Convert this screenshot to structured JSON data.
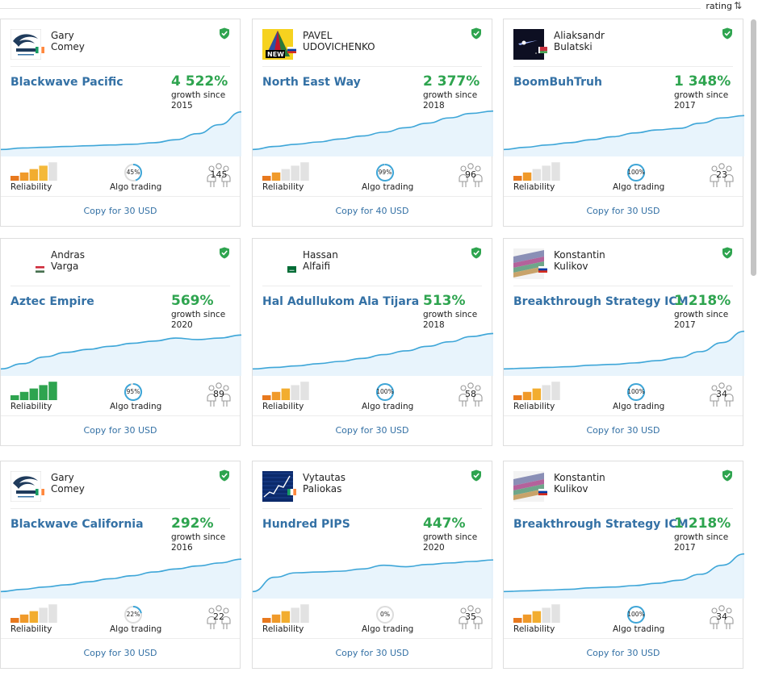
{
  "sort": {
    "label": "rating",
    "icon": "sort-arrows-icon"
  },
  "labels": {
    "reliability": "Reliability",
    "algo": "Algo trading"
  },
  "colors": {
    "accent": "#3471a5",
    "growth": "#2ea44f",
    "chart_line": "#3ea6d8"
  },
  "signals": [
    {
      "author_line1": "Gary",
      "author_line2": "Comey",
      "avatar": "blackwave-logo-icon",
      "flag": "ireland-flag-icon",
      "name": "Blackwave Pacific",
      "growth": "4 522%",
      "growth_label": "growth since",
      "since_year": "2015",
      "reliability_level": 4,
      "reliability_color": "orange",
      "algo": "45%",
      "algo_fraction": 0.45,
      "subscribers": "145",
      "copy_label": "Copy for 30 USD",
      "trend": [
        5,
        7,
        8,
        9,
        10,
        11,
        12,
        14,
        18,
        26,
        38,
        55
      ]
    },
    {
      "author_line1": "PAVEL",
      "author_line2": "UDOVICHENKO",
      "avatar": "new-triangle-logo-icon",
      "flag": "russia-flag-icon",
      "name": "North East Way",
      "growth": "2 377%",
      "growth_label": "growth since",
      "since_year": "2018",
      "reliability_level": 2,
      "reliability_color": "orange",
      "algo": "99%",
      "algo_fraction": 0.99,
      "subscribers": "96",
      "copy_label": "Copy for 40 USD",
      "trend": [
        5,
        9,
        12,
        15,
        19,
        23,
        28,
        34,
        40,
        47,
        53,
        56
      ]
    },
    {
      "author_line1": "Aliaksandr",
      "author_line2": "Bulatski",
      "avatar": "space-photo-icon",
      "flag": "belarus-flag-icon",
      "name": "BoomBuhTruh",
      "growth": "1 348%",
      "growth_label": "growth since",
      "since_year": "2017",
      "reliability_level": 2,
      "reliability_color": "orange",
      "algo": "100%",
      "algo_fraction": 1.0,
      "subscribers": "23",
      "copy_label": "Copy for 30 USD",
      "trend": [
        5,
        8,
        11,
        14,
        18,
        22,
        27,
        31,
        33,
        40,
        47,
        50
      ]
    },
    {
      "author_line1": "Andras",
      "author_line2": "Varga",
      "avatar": "",
      "flag": "hungary-flag-icon",
      "name": "Aztec Empire",
      "growth": "569%",
      "growth_label": "growth since",
      "since_year": "2020",
      "reliability_level": 5,
      "reliability_color": "green",
      "algo": "95%",
      "algo_fraction": 0.95,
      "subscribers": "89",
      "copy_label": "Copy for 30 USD",
      "trend": [
        5,
        12,
        21,
        27,
        31,
        35,
        39,
        42,
        46,
        44,
        46,
        50
      ]
    },
    {
      "author_line1": "Hassan",
      "author_line2": "Alfaifi",
      "avatar": "",
      "flag": "saudi-arabia-flag-icon",
      "name": "Hal Adullukom Ala Tijara",
      "growth": "513%",
      "growth_label": "growth since",
      "since_year": "2018",
      "reliability_level": 3,
      "reliability_color": "orange",
      "algo": "100%",
      "algo_fraction": 1.0,
      "subscribers": "58",
      "copy_label": "Copy for 30 USD",
      "trend": [
        5,
        7,
        9,
        12,
        15,
        19,
        24,
        29,
        35,
        41,
        48,
        52
      ]
    },
    {
      "author_line1": "Konstantin",
      "author_line2": "Kulikov",
      "avatar": "charts-photo-icon",
      "flag": "russia-flag-icon",
      "name": "Breakthrough Strategy ICM",
      "growth": "1 218%",
      "growth_label": "growth since",
      "since_year": "2017",
      "reliability_level": 3,
      "reliability_color": "orange",
      "algo": "100%",
      "algo_fraction": 1.0,
      "subscribers": "34",
      "copy_label": "Copy for 30 USD",
      "trend": [
        5,
        6,
        7,
        8,
        10,
        11,
        13,
        16,
        20,
        28,
        40,
        55
      ]
    },
    {
      "author_line1": "Gary",
      "author_line2": "Comey",
      "avatar": "blackwave-logo-icon",
      "flag": "ireland-flag-icon",
      "name": "Blackwave California",
      "growth": "292%",
      "growth_label": "growth since",
      "since_year": "2016",
      "reliability_level": 3,
      "reliability_color": "orange",
      "algo": "22%",
      "algo_fraction": 0.22,
      "subscribers": "22",
      "copy_label": "Copy for 30 USD",
      "trend": [
        5,
        8,
        11,
        14,
        18,
        22,
        26,
        31,
        35,
        39,
        43,
        48
      ]
    },
    {
      "author_line1": "Vytautas",
      "author_line2": "Paliokas",
      "avatar": "chart-screen-photo-icon",
      "flag": "ireland-flag-icon",
      "name": "Hundred PIPS",
      "growth": "447%",
      "growth_label": "growth since",
      "since_year": "2020",
      "reliability_level": 3,
      "reliability_color": "orange",
      "algo": "0%",
      "algo_fraction": 0.0,
      "subscribers": "35",
      "copy_label": "Copy for 30 USD",
      "trend": [
        5,
        24,
        30,
        31,
        32,
        35,
        40,
        38,
        41,
        43,
        45,
        47
      ]
    },
    {
      "author_line1": "Konstantin",
      "author_line2": "Kulikov",
      "avatar": "charts-photo-icon",
      "flag": "russia-flag-icon",
      "name": "Breakthrough Strategy ICM",
      "growth": "1 218%",
      "growth_label": "growth since",
      "since_year": "2017",
      "reliability_level": 3,
      "reliability_color": "orange",
      "algo": "100%",
      "algo_fraction": 1.0,
      "subscribers": "34",
      "copy_label": "Copy for 30 USD",
      "trend": [
        5,
        6,
        7,
        8,
        10,
        11,
        13,
        16,
        20,
        28,
        40,
        55
      ]
    }
  ]
}
